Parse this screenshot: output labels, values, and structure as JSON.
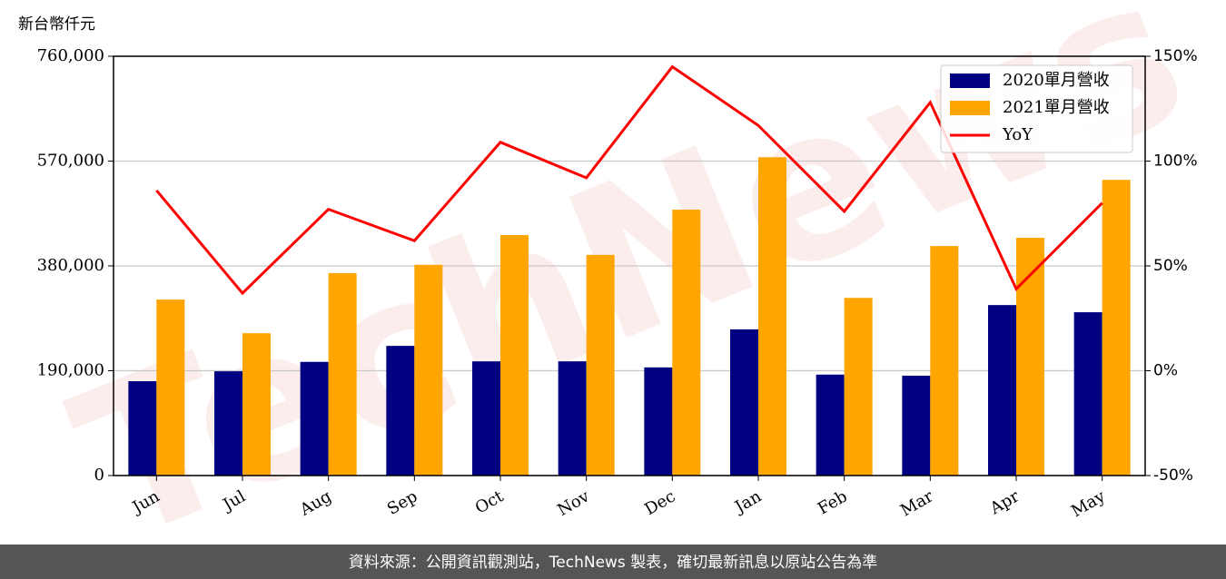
{
  "chart_data": {
    "type": "bar-line",
    "y_label": "新台幣仟元",
    "watermark": "TechNews",
    "source": "資料來源：公開資訊觀測站，TechNews 製表，確切最新訊息以原站公告為準",
    "categories": [
      "Jun",
      "Jul",
      "Aug",
      "Sep",
      "Oct",
      "Nov",
      "Dec",
      "Jan",
      "Feb",
      "Mar",
      "Apr",
      "May"
    ],
    "series": [
      {
        "name": "2020單月營收",
        "type": "bar",
        "color": "#000080",
        "values": [
          171000,
          189000,
          206000,
          235000,
          207000,
          207000,
          196000,
          265000,
          183000,
          181000,
          309000,
          296000
        ]
      },
      {
        "name": "2021單月營收",
        "type": "bar",
        "color": "#ffa500",
        "values": [
          319000,
          258000,
          367000,
          382000,
          436000,
          400000,
          482000,
          577000,
          322000,
          416000,
          431000,
          536000
        ]
      },
      {
        "name": "YoY",
        "type": "line",
        "axis": "y2",
        "color": "#ff0000",
        "values": [
          86,
          37,
          77,
          62,
          109,
          92,
          145,
          117,
          76,
          128,
          39,
          80
        ]
      }
    ],
    "ylim": [
      0,
      760000
    ],
    "yticks": [
      0,
      {
        "value": 190000,
        "label": "190,000"
      },
      {
        "value": 380000,
        "label": "380,000"
      },
      {
        "value": 570000,
        "label": "570,000"
      },
      {
        "value": 760000,
        "label": "760,000"
      }
    ],
    "y2lim": [
      -50,
      150
    ],
    "y2ticks": [
      {
        "value": -50,
        "label": "-50%"
      },
      {
        "value": 0,
        "label": "0%"
      },
      {
        "value": 50,
        "label": "50%"
      },
      {
        "value": 100,
        "label": "100%"
      },
      {
        "value": 150,
        "label": "150%"
      }
    ],
    "grid": true,
    "legend": "upper right"
  }
}
